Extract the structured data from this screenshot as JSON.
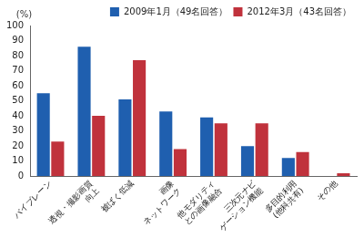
{
  "chart_data": {
    "type": "bar",
    "ylabel": "(%)",
    "categories": [
      "バイプレーン",
      "透視・撮影画質\n向上",
      "被ばく低減",
      "画像\nネットワーク",
      "他モダリティ\nとの画像融合",
      "三次元ナビ\nゲーション機能",
      "多目的利用\n(他科共有)",
      "その他"
    ],
    "series": [
      {
        "name": "2009年1月（49名回答）",
        "color": "#1f5faf",
        "values": [
          55,
          86,
          51,
          43,
          39,
          20,
          12,
          0
        ]
      },
      {
        "name": "2012年3月（43名回答）",
        "color": "#c0323c",
        "values": [
          23,
          40,
          77,
          18,
          35,
          35,
          16,
          2
        ]
      }
    ],
    "ylim": [
      0,
      100
    ],
    "yticks": [
      0,
      10,
      20,
      30,
      40,
      50,
      60,
      70,
      80,
      90,
      100
    ],
    "grid": false,
    "legend": "upper right"
  }
}
